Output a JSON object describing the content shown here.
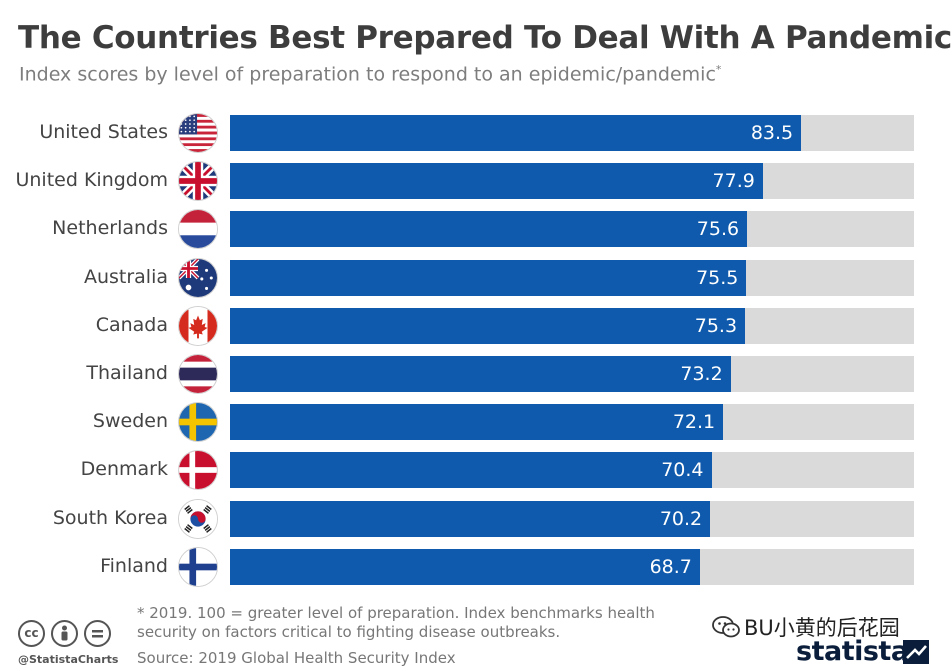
{
  "chart_data": {
    "type": "bar",
    "orientation": "horizontal",
    "title": "The Countries Best Prepared To Deal With A Pandemic",
    "subtitle": "Index scores by level of preparation to respond to an epidemic/pandemic",
    "subtitle_mark": "*",
    "categories": [
      "United States",
      "United Kingdom",
      "Netherlands",
      "Australia",
      "Canada",
      "Thailand",
      "Sweden",
      "Denmark",
      "South Korea",
      "Finland"
    ],
    "values": [
      83.5,
      77.9,
      75.6,
      75.5,
      75.3,
      73.2,
      72.1,
      70.4,
      70.2,
      68.7
    ],
    "value_labels": [
      "83.5",
      "77.9",
      "75.6",
      "75.5",
      "75.3",
      "73.2",
      "72.1",
      "70.4",
      "70.2",
      "68.7"
    ],
    "xlim": [
      0,
      100
    ],
    "grid": false,
    "colors": {
      "bar": "#0f5aac",
      "track": "#dadada"
    },
    "flag_icons": [
      "us-flag-icon",
      "uk-flag-icon",
      "netherlands-flag-icon",
      "australia-flag-icon",
      "canada-flag-icon",
      "thailand-flag-icon",
      "sweden-flag-icon",
      "denmark-flag-icon",
      "south-korea-flag-icon",
      "finland-flag-icon"
    ]
  },
  "footnote": "* 2019. 100 = greater level of preparation. Index benchmarks health security on factors critical to fighting disease outbreaks.",
  "source": "Source: 2019 Global Health Security Index",
  "credit": {
    "handle": "@StatistaCharts",
    "icons": [
      "cc-icon",
      "by-icon",
      "nd-icon"
    ]
  },
  "watermark": "BU小黄的后花园",
  "logo": "statista"
}
